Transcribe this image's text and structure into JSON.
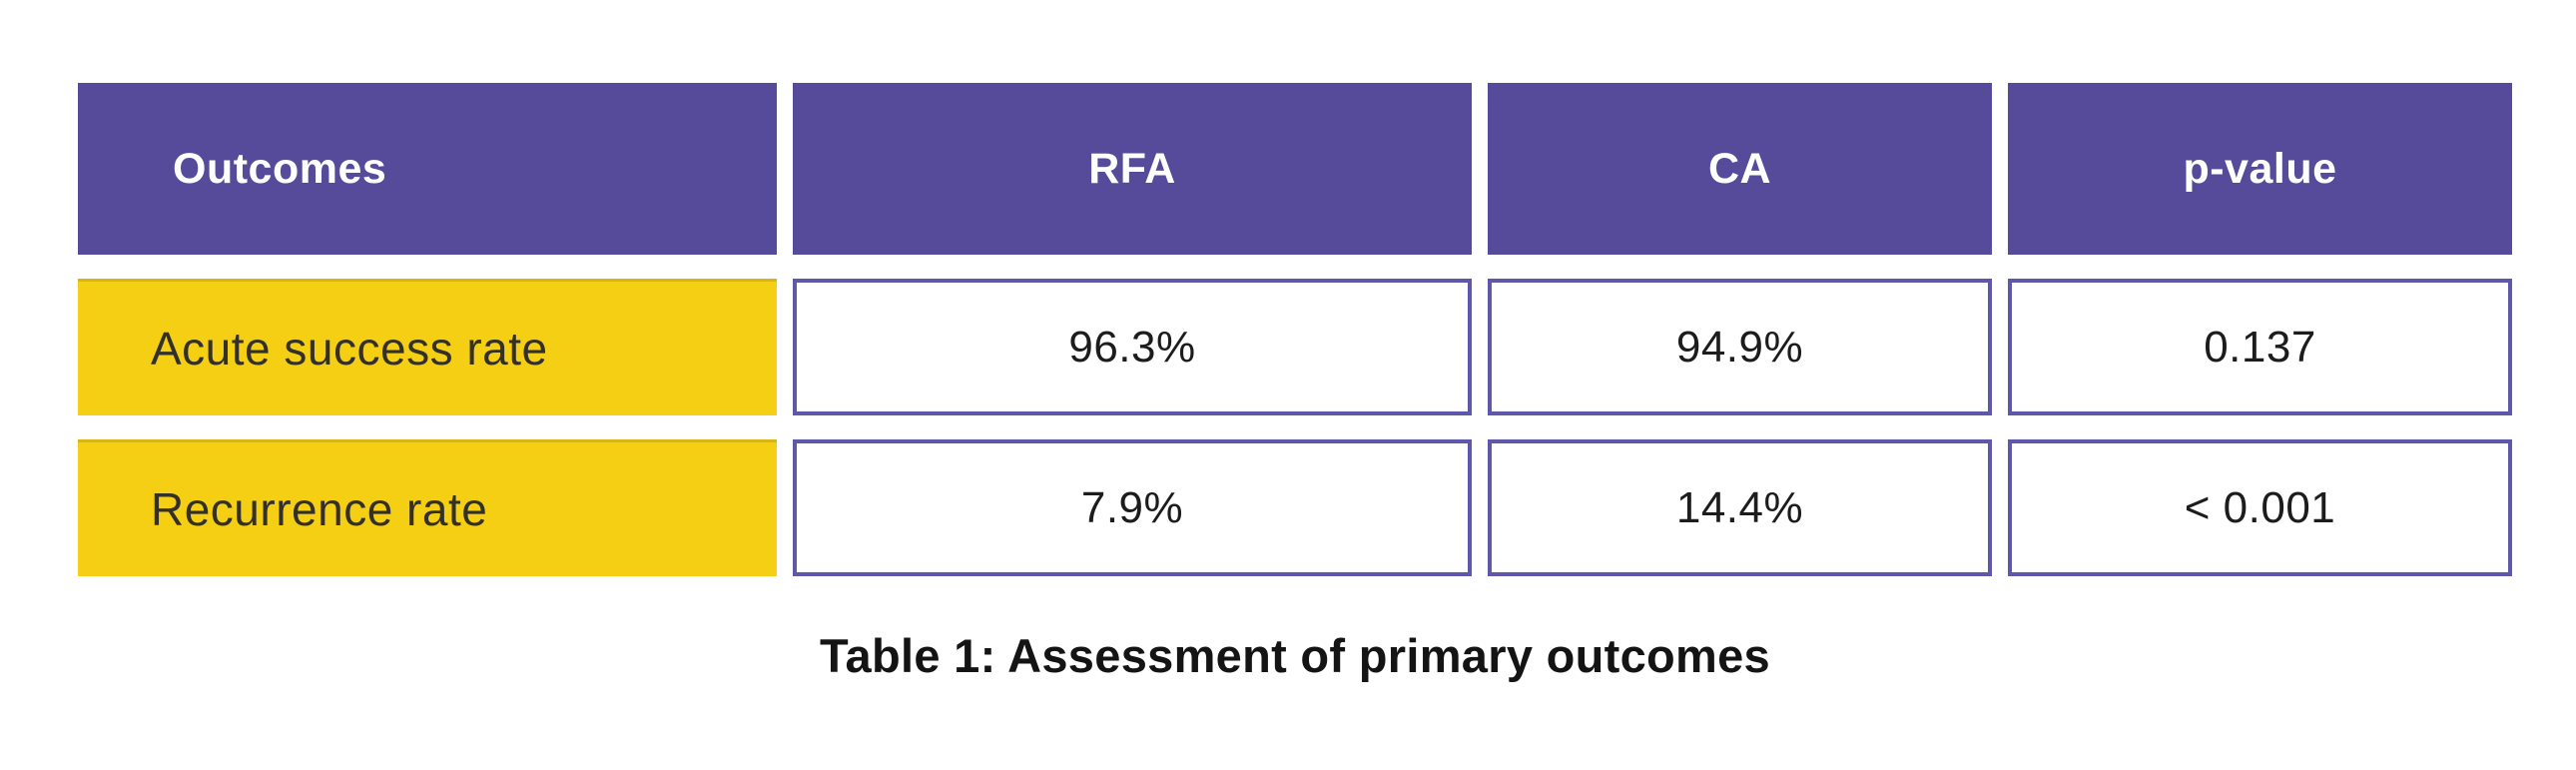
{
  "colors": {
    "page_bg": "#FFFFFF",
    "header_bg": "#564B9B",
    "header_text": "#FFFFFF",
    "label_bg": "#F5CF14",
    "label_top_edge": "#D9B512",
    "label_text": "#33302A",
    "value_cell_border": "#5F57A9",
    "value_text": "#1C1C1C",
    "caption_text": "#141414"
  },
  "table": {
    "headers": [
      "Outcomes",
      "RFA",
      "CA",
      "p-value"
    ],
    "rows": [
      {
        "label": "Acute success rate",
        "values": [
          "96.3%",
          "94.9%",
          "0.137"
        ]
      },
      {
        "label": "Recurrence rate",
        "values": [
          "7.9%",
          "14.4%",
          "< 0.001"
        ]
      }
    ],
    "caption": "Table 1: Assessment of primary outcomes"
  },
  "chart_data": {
    "type": "table",
    "title": "Table 1: Assessment of primary outcomes",
    "columns": [
      "Outcomes",
      "RFA",
      "CA",
      "p-value"
    ],
    "rows": [
      [
        "Acute success rate",
        "96.3%",
        "94.9%",
        "0.137"
      ],
      [
        "Recurrence rate",
        "7.9%",
        "14.4%",
        "< 0.001"
      ]
    ],
    "notes": {
      "acute_success_rate": {
        "RFA": 96.3,
        "CA": 94.9,
        "p_value": "0.137",
        "unit": "%"
      },
      "recurrence_rate": {
        "RFA": 7.9,
        "CA": 14.4,
        "p_value": "< 0.001",
        "unit": "%"
      }
    }
  }
}
